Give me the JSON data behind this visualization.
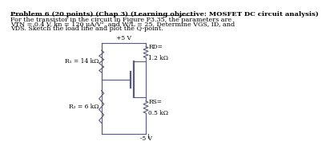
{
  "title_line": "Problem 6 (20 points) (Chap 3) (Learning objective: MOSFET DC circuit analysis)",
  "body_line1": "For the transistor in the circuit in Figure P3.35, the parameters are",
  "body_line2": "VTN = 0.4 V, kn = 120 μA/V², and W/L = 25. Determine VGS, ID, and",
  "body_line3": "VDS. Sketch the load line and plot the Q-point.",
  "vdd": "+5 V",
  "vss": "-5 V",
  "R1_label": "R₁ = 14 kΩ",
  "R2_label": "R₂ = 6 kΩ",
  "RD_label1": "RD=",
  "RD_label2": "1.2 kΩ",
  "RS_label1": "RS=",
  "RS_label2": "0.5 kΩ",
  "bg_color": "#ffffff",
  "text_color": "#000000",
  "circuit_color": "#5a5a7a",
  "title_fontsize": 6.0,
  "body_fontsize": 5.8,
  "label_fontsize": 5.4
}
